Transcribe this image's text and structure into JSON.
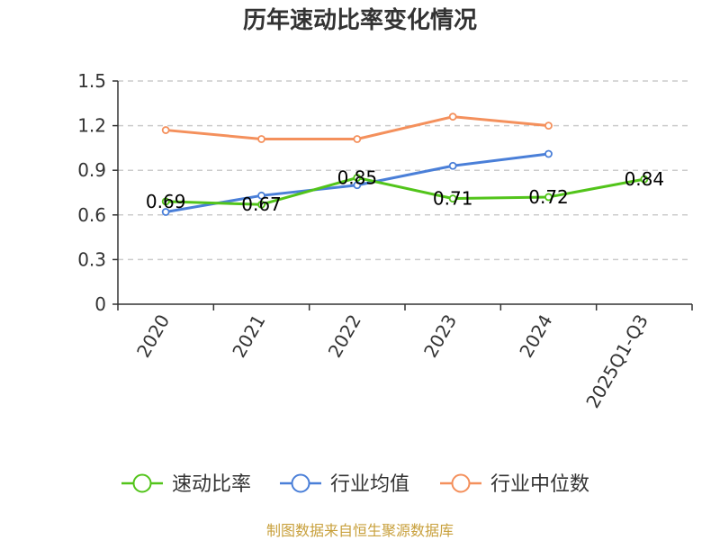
{
  "colors": {
    "background": "#ffffff",
    "text": "#333333",
    "grid": "#cccccc",
    "axis": "#333333",
    "source": "#c8a03c"
  },
  "chart_data": {
    "type": "line",
    "title": "历年速动比率变化情况",
    "categories": [
      "2020",
      "2021",
      "2022",
      "2023",
      "2024",
      "2025Q1-Q3"
    ],
    "yticks": [
      "0",
      "0.3",
      "0.6",
      "0.9",
      "1.2",
      "1.5"
    ],
    "ylim": [
      0,
      1.5
    ],
    "grid": true,
    "legend_position": "bottom",
    "series": [
      {
        "name": "速动比率",
        "color": "#52c41a",
        "values": [
          0.69,
          0.67,
          0.85,
          0.71,
          0.72,
          0.84
        ],
        "labels": [
          "0.69",
          "0.67",
          "0.85",
          "0.71",
          "0.72",
          "0.84"
        ]
      },
      {
        "name": "行业均值",
        "color": "#4a7fd8",
        "values": [
          0.62,
          0.73,
          0.8,
          0.93,
          1.01,
          null
        ]
      },
      {
        "name": "行业中位数",
        "color": "#f4905c",
        "values": [
          1.17,
          1.11,
          1.11,
          1.26,
          1.2,
          null
        ]
      }
    ]
  },
  "source_text": "制图数据来自恒生聚源数据库"
}
